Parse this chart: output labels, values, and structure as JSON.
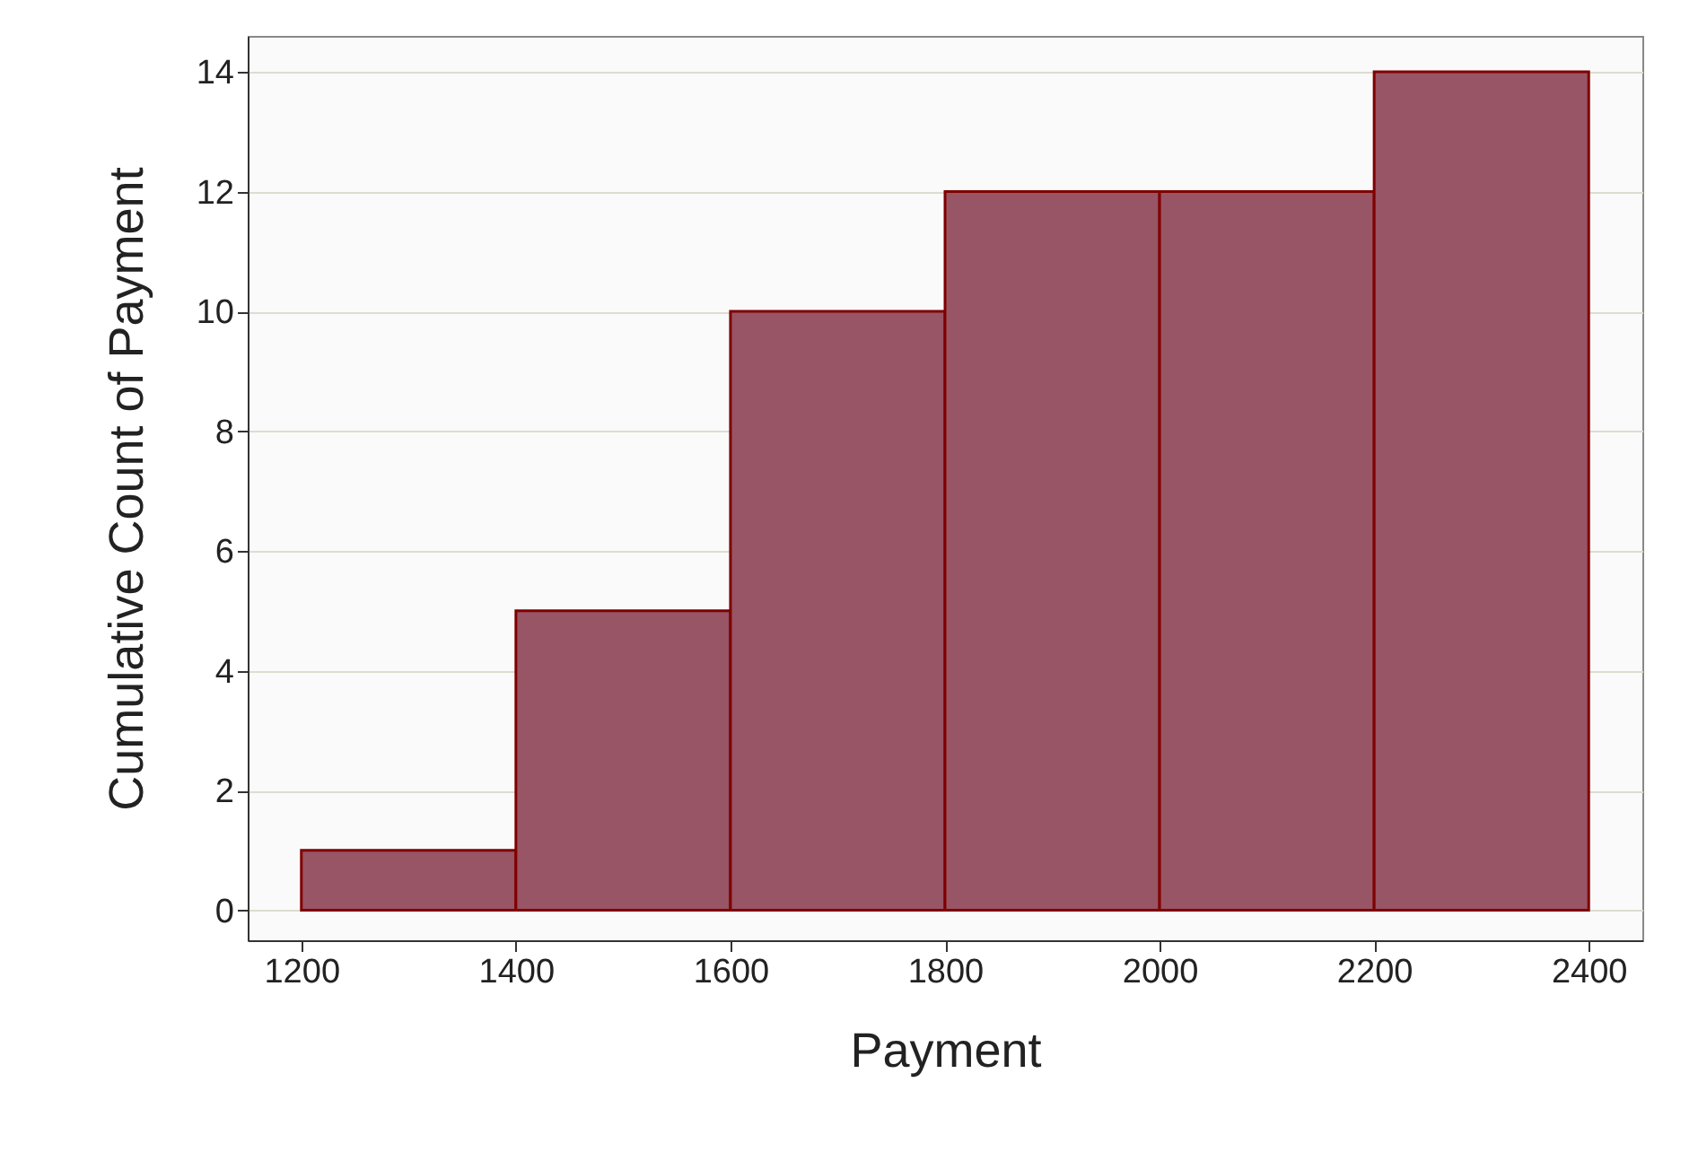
{
  "chart_data": {
    "type": "histogram",
    "xlabel": "Payment",
    "ylabel": "Cumulative Count of Payment",
    "bins": [
      1200,
      1400,
      1600,
      1800,
      2000,
      2200,
      2400
    ],
    "values": [
      1,
      5,
      10,
      12,
      12,
      14
    ],
    "color": "#985565",
    "xlim": [
      1150,
      2450
    ],
    "ylim": [
      -0.5,
      14.6
    ],
    "xticks": [
      1200,
      1400,
      1600,
      1800,
      2000,
      2200,
      2400
    ],
    "yticks": [
      0,
      2,
      4,
      6,
      8,
      10,
      12,
      14
    ],
    "grid": "y"
  }
}
